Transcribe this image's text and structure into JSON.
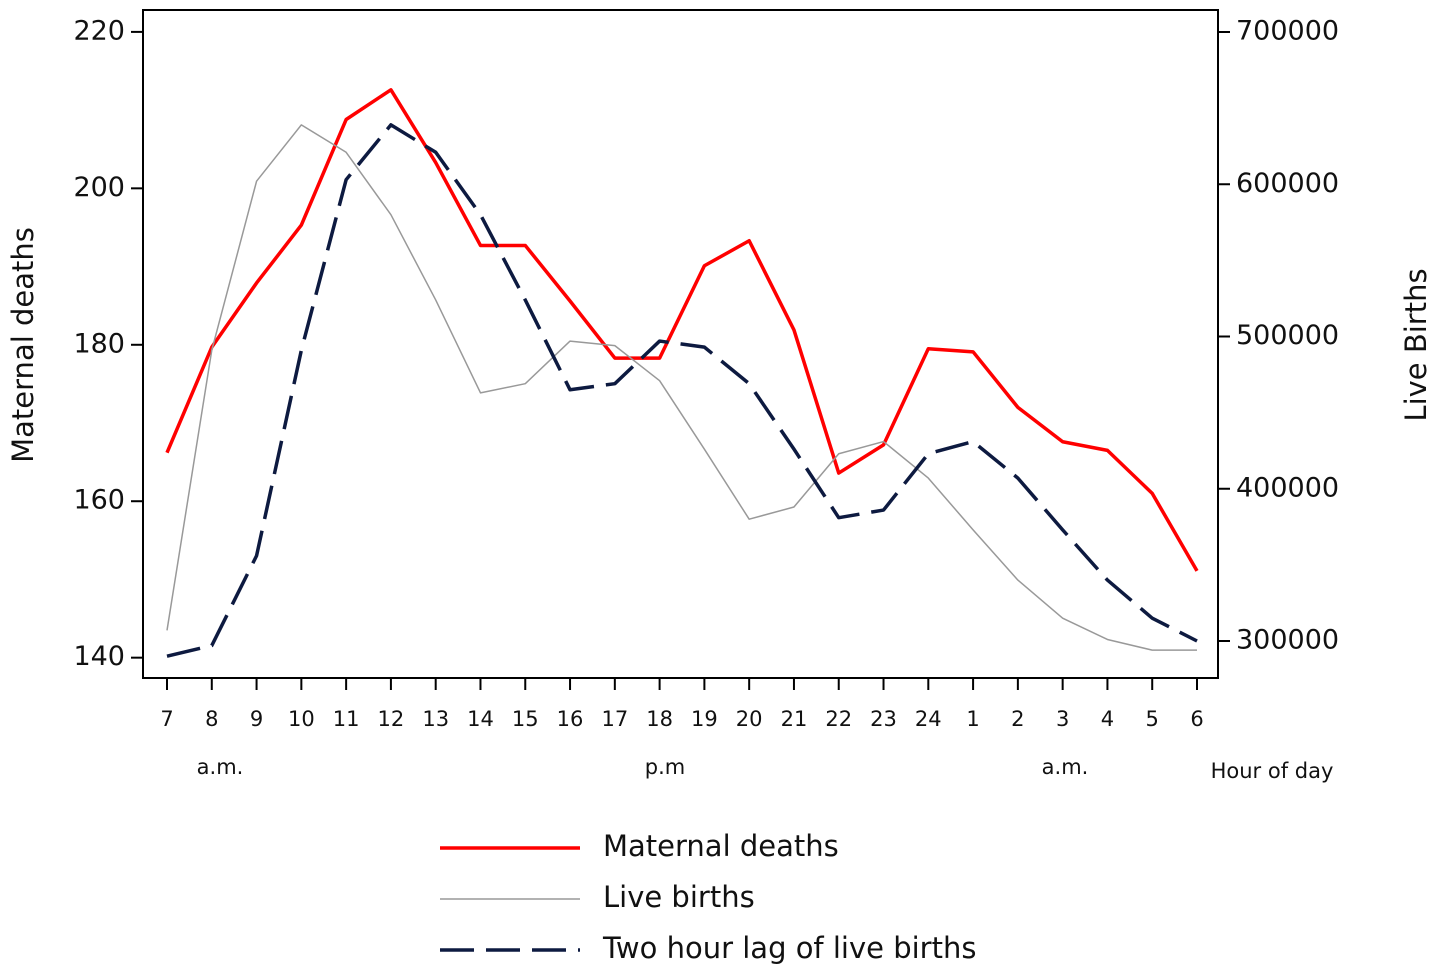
{
  "chart_data": {
    "type": "line",
    "categories": [
      "7",
      "8",
      "9",
      "10",
      "11",
      "12",
      "13",
      "14",
      "15",
      "16",
      "17",
      "18",
      "19",
      "20",
      "21",
      "22",
      "23",
      "24",
      "1",
      "2",
      "3",
      "4",
      "5",
      "6"
    ],
    "y_label": "Maternal deaths",
    "y2_label": "Live Births",
    "x_label": "Hour of day",
    "annotations": [
      "a.m.",
      "p.m",
      "a.m."
    ],
    "ylim": [
      137.4,
      222.8
    ],
    "yticks": [
      140,
      160,
      180,
      200,
      220
    ],
    "y2lim": [
      275700,
      714450
    ],
    "y2ticks": [
      300000,
      400000,
      500000,
      600000,
      700000
    ],
    "series": [
      {
        "name": "Maternal deaths",
        "color": "#ff0000",
        "style": "solid",
        "values": [
          166.2,
          179.7,
          187.9,
          195.3,
          208.8,
          212.6,
          203.3,
          192.7,
          192.7,
          185.6,
          178.3,
          178.3,
          190.1,
          193.3,
          181.9,
          163.6,
          167.2,
          179.5,
          179.1,
          172.0,
          167.6,
          166.5,
          161.0,
          151.1
        ]
      },
      {
        "name": "Live births",
        "color": "#999999",
        "style": "thin",
        "axis": "y2",
        "values": [
          307000,
          491000,
          602000,
          639000,
          621000,
          580000,
          524000,
          463000,
          469000,
          497000,
          494000,
          471000,
          426000,
          380000,
          388000,
          423000,
          431000,
          407000,
          373000,
          340000,
          315000,
          301000,
          294000,
          294000
        ]
      },
      {
        "name": "Two hour lag of live births",
        "color": "#0d1a40",
        "style": "dashed",
        "axis": "y2",
        "values": [
          290000,
          297000,
          356000,
          491000,
          603000,
          639000,
          621000,
          580000,
          524000,
          465000,
          469000,
          497000,
          493000,
          469000,
          426000,
          381000,
          386000,
          423000,
          431000,
          407000,
          373000,
          340000,
          315000,
          300000
        ]
      }
    ]
  }
}
